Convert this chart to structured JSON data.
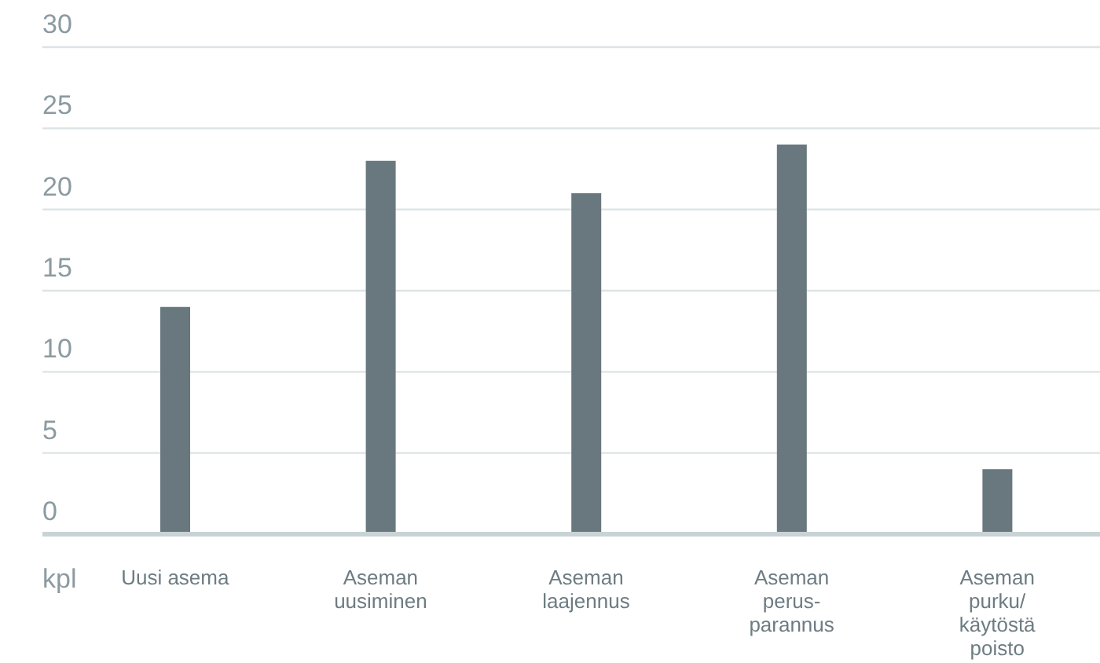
{
  "chart_data": {
    "type": "bar",
    "annotations": [
      "kpl"
    ],
    "categories": [
      "Uusi asema",
      "Aseman\nuusiminen",
      "Aseman\nlaajennus",
      "Aseman\nperus-\nparannus",
      "Aseman\npurku/\nkäytöstä\npoisto"
    ],
    "values": [
      14,
      23,
      21,
      24,
      4
    ],
    "color": "#69777e",
    "ylim": [
      0,
      30
    ],
    "yticks": [
      0,
      5,
      10,
      15,
      20,
      25,
      30
    ],
    "grid": "y"
  }
}
